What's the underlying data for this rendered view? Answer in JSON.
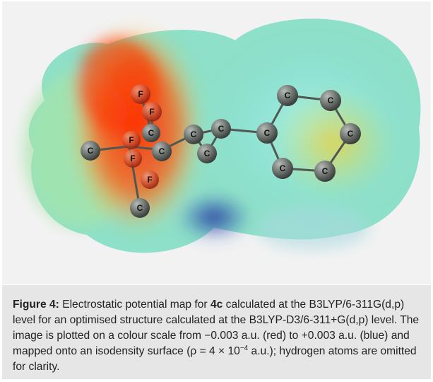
{
  "figure": {
    "label": "Figure 4:",
    "caption_part1": " Electrostatic potential map for ",
    "compound": "4c",
    "caption_part2": " calculated at the B3LYP/6-311G(d,p) level for an optimised structure calculated at the B3LYP-D3/6-311+G(d,p) level. The image is plotted on a colour scale from −0.003 a.u. (red) to +0.003 a.u. (blue) and mapped onto an isodensity surface (ρ = 4 × 10",
    "exponent": "−4",
    "caption_part3": " a.u.); hydrogen atoms are omitted for clarity."
  },
  "molecule": {
    "atom_labels": {
      "c_methyl": "C",
      "f1": "F",
      "f2": "F",
      "c1": "C",
      "f3": "F",
      "f4": "F",
      "c2": "C",
      "f5": "F",
      "c_bottom": "C",
      "c_ring1": "C",
      "c_ring2": "C",
      "c_ring3": "C",
      "c_ipso": "C",
      "c_ph1": "C",
      "c_ph2": "C",
      "c_ph3": "C",
      "c_ph4": "C",
      "c_ph5": "C"
    },
    "scale_colors": {
      "negative": "#ff2a00",
      "positive": "#1a2a9a",
      "neutral": "#7fe0c8"
    }
  }
}
